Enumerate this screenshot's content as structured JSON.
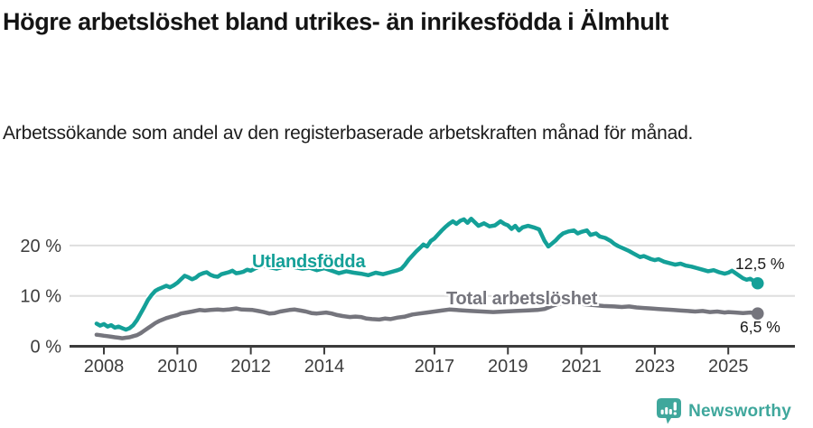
{
  "header": {
    "title": "Högre arbetslöshet bland utrikes- än inrikesfödda i Älmhult",
    "subtitle": "Arbetssökande som andel av den registerbaserade arbetskraften månad för månad."
  },
  "footer": {
    "brand": "Newsworthy"
  },
  "colors": {
    "teal": "#14A098",
    "gray": "#75757D",
    "axis": "#3B3B3B",
    "grid": "#DEDEDE",
    "tick_text": "#3D3D3D",
    "brand_teal": "#3FA79C"
  },
  "chart_data": {
    "type": "line",
    "title": "Högre arbetslöshet bland utrikes- än inrikesfödda i Älmhult",
    "subtitle": "Arbetssökande som andel av den registerbaserade arbetskraften månad för månad.",
    "xlabel": "",
    "ylabel": "",
    "grid": "horizontal",
    "legend": "inline-labels",
    "xlim": [
      2007.7,
      2026.8
    ],
    "ylim": [
      0,
      27
    ],
    "x_axis": {
      "ticks": [
        2008,
        2010,
        2012,
        2014,
        2017,
        2019,
        2021,
        2023,
        2025
      ],
      "labels": [
        "2008",
        "2010",
        "2012",
        "2014",
        "2017",
        "2019",
        "2021",
        "2023",
        "2025"
      ]
    },
    "y_axis": {
      "ticks": [
        0,
        10,
        20
      ],
      "labels": [
        "0 %",
        "10 %",
        "20 %"
      ]
    },
    "series": [
      {
        "name": "Utlandsfödda",
        "color": "#14A098",
        "end_label": "12,5 %",
        "end_value": 12.5,
        "points": [
          [
            2007.8,
            4.5
          ],
          [
            2007.9,
            4.1
          ],
          [
            2008.0,
            4.4
          ],
          [
            2008.1,
            3.9
          ],
          [
            2008.2,
            4.2
          ],
          [
            2008.3,
            3.7
          ],
          [
            2008.4,
            3.9
          ],
          [
            2008.5,
            3.6
          ],
          [
            2008.6,
            3.3
          ],
          [
            2008.7,
            3.6
          ],
          [
            2008.8,
            4.2
          ],
          [
            2008.9,
            5.2
          ],
          [
            2009.0,
            6.5
          ],
          [
            2009.1,
            7.8
          ],
          [
            2009.2,
            9.2
          ],
          [
            2009.3,
            10.2
          ],
          [
            2009.4,
            11.0
          ],
          [
            2009.5,
            11.4
          ],
          [
            2009.6,
            11.7
          ],
          [
            2009.7,
            12.0
          ],
          [
            2009.8,
            11.7
          ],
          [
            2009.9,
            12.1
          ],
          [
            2010.0,
            12.6
          ],
          [
            2010.1,
            13.3
          ],
          [
            2010.2,
            14.0
          ],
          [
            2010.3,
            13.7
          ],
          [
            2010.4,
            13.3
          ],
          [
            2010.5,
            13.6
          ],
          [
            2010.6,
            14.2
          ],
          [
            2010.7,
            14.5
          ],
          [
            2010.8,
            14.7
          ],
          [
            2010.9,
            14.2
          ],
          [
            2011.0,
            13.9
          ],
          [
            2011.1,
            13.8
          ],
          [
            2011.2,
            14.3
          ],
          [
            2011.3,
            14.5
          ],
          [
            2011.4,
            14.7
          ],
          [
            2011.5,
            15.0
          ],
          [
            2011.6,
            14.5
          ],
          [
            2011.7,
            14.6
          ],
          [
            2011.8,
            14.8
          ],
          [
            2011.9,
            15.2
          ],
          [
            2012.0,
            15.0
          ],
          [
            2012.1,
            15.4
          ],
          [
            2012.3,
            16.0
          ],
          [
            2012.5,
            15.7
          ],
          [
            2012.7,
            15.4
          ],
          [
            2012.9,
            15.8
          ],
          [
            2013.0,
            16.1
          ],
          [
            2013.2,
            15.7
          ],
          [
            2013.4,
            15.4
          ],
          [
            2013.6,
            15.6
          ],
          [
            2013.8,
            15.1
          ],
          [
            2014.0,
            15.5
          ],
          [
            2014.2,
            15.0
          ],
          [
            2014.4,
            14.5
          ],
          [
            2014.6,
            14.9
          ],
          [
            2014.8,
            14.6
          ],
          [
            2015.0,
            14.4
          ],
          [
            2015.2,
            14.1
          ],
          [
            2015.4,
            14.6
          ],
          [
            2015.6,
            14.3
          ],
          [
            2015.8,
            14.7
          ],
          [
            2016.0,
            15.1
          ],
          [
            2016.1,
            15.4
          ],
          [
            2016.2,
            16.2
          ],
          [
            2016.3,
            17.2
          ],
          [
            2016.4,
            18.0
          ],
          [
            2016.5,
            18.8
          ],
          [
            2016.6,
            19.5
          ],
          [
            2016.7,
            20.2
          ],
          [
            2016.8,
            19.8
          ],
          [
            2016.9,
            20.9
          ],
          [
            2017.0,
            21.4
          ],
          [
            2017.1,
            22.2
          ],
          [
            2017.2,
            23.0
          ],
          [
            2017.3,
            23.7
          ],
          [
            2017.4,
            24.3
          ],
          [
            2017.5,
            24.8
          ],
          [
            2017.6,
            24.3
          ],
          [
            2017.7,
            24.9
          ],
          [
            2017.8,
            25.2
          ],
          [
            2017.9,
            24.5
          ],
          [
            2018.0,
            25.3
          ],
          [
            2018.1,
            24.6
          ],
          [
            2018.2,
            23.9
          ],
          [
            2018.35,
            24.4
          ],
          [
            2018.5,
            23.8
          ],
          [
            2018.65,
            24.0
          ],
          [
            2018.8,
            24.8
          ],
          [
            2018.9,
            24.3
          ],
          [
            2019.0,
            24.0
          ],
          [
            2019.1,
            23.3
          ],
          [
            2019.2,
            23.9
          ],
          [
            2019.3,
            23.0
          ],
          [
            2019.4,
            23.6
          ],
          [
            2019.55,
            23.9
          ],
          [
            2019.7,
            23.6
          ],
          [
            2019.85,
            23.2
          ],
          [
            2020.0,
            20.9
          ],
          [
            2020.1,
            19.8
          ],
          [
            2020.2,
            20.4
          ],
          [
            2020.3,
            21.0
          ],
          [
            2020.4,
            21.8
          ],
          [
            2020.5,
            22.4
          ],
          [
            2020.65,
            22.8
          ],
          [
            2020.8,
            23.0
          ],
          [
            2020.9,
            22.4
          ],
          [
            2021.0,
            22.7
          ],
          [
            2021.15,
            23.0
          ],
          [
            2021.25,
            22.1
          ],
          [
            2021.4,
            22.4
          ],
          [
            2021.5,
            21.8
          ],
          [
            2021.65,
            21.5
          ],
          [
            2021.8,
            20.9
          ],
          [
            2021.9,
            20.3
          ],
          [
            2022.0,
            19.9
          ],
          [
            2022.15,
            19.4
          ],
          [
            2022.3,
            18.9
          ],
          [
            2022.4,
            18.5
          ],
          [
            2022.6,
            17.7
          ],
          [
            2022.7,
            17.9
          ],
          [
            2022.9,
            17.3
          ],
          [
            2023.0,
            17.1
          ],
          [
            2023.1,
            17.3
          ],
          [
            2023.25,
            16.8
          ],
          [
            2023.4,
            16.5
          ],
          [
            2023.55,
            16.2
          ],
          [
            2023.7,
            16.4
          ],
          [
            2023.85,
            16.0
          ],
          [
            2024.0,
            15.8
          ],
          [
            2024.15,
            15.5
          ],
          [
            2024.3,
            15.2
          ],
          [
            2024.45,
            14.9
          ],
          [
            2024.6,
            15.1
          ],
          [
            2024.75,
            14.7
          ],
          [
            2024.9,
            14.4
          ],
          [
            2025.0,
            14.6
          ],
          [
            2025.1,
            15.0
          ],
          [
            2025.2,
            14.5
          ],
          [
            2025.3,
            14.0
          ],
          [
            2025.4,
            13.5
          ],
          [
            2025.5,
            13.2
          ],
          [
            2025.6,
            13.4
          ],
          [
            2025.7,
            12.9
          ],
          [
            2025.8,
            12.5
          ]
        ]
      },
      {
        "name": "Total arbetslöshet",
        "color": "#75757D",
        "end_label": "6,5 %",
        "end_value": 6.5,
        "points": [
          [
            2007.8,
            2.3
          ],
          [
            2007.9,
            2.2
          ],
          [
            2008.0,
            2.1
          ],
          [
            2008.1,
            2.0
          ],
          [
            2008.2,
            1.9
          ],
          [
            2008.3,
            1.8
          ],
          [
            2008.4,
            1.7
          ],
          [
            2008.5,
            1.6
          ],
          [
            2008.6,
            1.7
          ],
          [
            2008.7,
            1.8
          ],
          [
            2008.8,
            2.0
          ],
          [
            2008.9,
            2.2
          ],
          [
            2009.0,
            2.6
          ],
          [
            2009.1,
            3.1
          ],
          [
            2009.2,
            3.6
          ],
          [
            2009.3,
            4.1
          ],
          [
            2009.4,
            4.6
          ],
          [
            2009.5,
            5.0
          ],
          [
            2009.6,
            5.3
          ],
          [
            2009.7,
            5.6
          ],
          [
            2009.8,
            5.8
          ],
          [
            2009.9,
            6.0
          ],
          [
            2010.0,
            6.2
          ],
          [
            2010.1,
            6.5
          ],
          [
            2010.25,
            6.7
          ],
          [
            2010.4,
            6.9
          ],
          [
            2010.6,
            7.2
          ],
          [
            2010.75,
            7.1
          ],
          [
            2010.9,
            7.2
          ],
          [
            2011.1,
            7.3
          ],
          [
            2011.25,
            7.2
          ],
          [
            2011.4,
            7.3
          ],
          [
            2011.6,
            7.5
          ],
          [
            2011.75,
            7.3
          ],
          [
            2011.9,
            7.25
          ],
          [
            2012.05,
            7.2
          ],
          [
            2012.2,
            7.0
          ],
          [
            2012.35,
            6.8
          ],
          [
            2012.5,
            6.5
          ],
          [
            2012.65,
            6.6
          ],
          [
            2012.8,
            6.9
          ],
          [
            2013.05,
            7.2
          ],
          [
            2013.2,
            7.3
          ],
          [
            2013.35,
            7.1
          ],
          [
            2013.5,
            6.9
          ],
          [
            2013.65,
            6.6
          ],
          [
            2013.8,
            6.5
          ],
          [
            2014.05,
            6.7
          ],
          [
            2014.2,
            6.5
          ],
          [
            2014.35,
            6.2
          ],
          [
            2014.5,
            6.0
          ],
          [
            2014.7,
            5.8
          ],
          [
            2014.85,
            5.9
          ],
          [
            2015.0,
            5.8
          ],
          [
            2015.15,
            5.5
          ],
          [
            2015.3,
            5.4
          ],
          [
            2015.5,
            5.3
          ],
          [
            2015.65,
            5.5
          ],
          [
            2015.8,
            5.4
          ],
          [
            2016.0,
            5.7
          ],
          [
            2016.2,
            5.9
          ],
          [
            2016.4,
            6.3
          ],
          [
            2016.6,
            6.5
          ],
          [
            2016.8,
            6.7
          ],
          [
            2017.0,
            6.9
          ],
          [
            2017.2,
            7.1
          ],
          [
            2017.4,
            7.3
          ],
          [
            2017.6,
            7.2
          ],
          [
            2017.8,
            7.1
          ],
          [
            2018.0,
            7.0
          ],
          [
            2018.3,
            6.9
          ],
          [
            2018.6,
            6.8
          ],
          [
            2018.9,
            6.9
          ],
          [
            2019.2,
            7.0
          ],
          [
            2019.5,
            7.1
          ],
          [
            2019.8,
            7.2
          ],
          [
            2020.0,
            7.4
          ],
          [
            2020.2,
            8.0
          ],
          [
            2020.4,
            8.5
          ],
          [
            2020.6,
            8.6
          ],
          [
            2020.8,
            8.5
          ],
          [
            2021.0,
            8.4
          ],
          [
            2021.3,
            8.2
          ],
          [
            2021.6,
            8.0
          ],
          [
            2021.9,
            7.9
          ],
          [
            2022.1,
            7.8
          ],
          [
            2022.3,
            7.9
          ],
          [
            2022.5,
            7.7
          ],
          [
            2022.7,
            7.6
          ],
          [
            2022.9,
            7.5
          ],
          [
            2023.1,
            7.4
          ],
          [
            2023.3,
            7.3
          ],
          [
            2023.5,
            7.2
          ],
          [
            2023.7,
            7.1
          ],
          [
            2023.9,
            7.0
          ],
          [
            2024.1,
            6.9
          ],
          [
            2024.3,
            7.0
          ],
          [
            2024.5,
            6.8
          ],
          [
            2024.7,
            6.9
          ],
          [
            2024.9,
            6.7
          ],
          [
            2025.0,
            6.8
          ],
          [
            2025.2,
            6.7
          ],
          [
            2025.4,
            6.6
          ],
          [
            2025.6,
            6.7
          ],
          [
            2025.8,
            6.5
          ]
        ]
      }
    ]
  }
}
